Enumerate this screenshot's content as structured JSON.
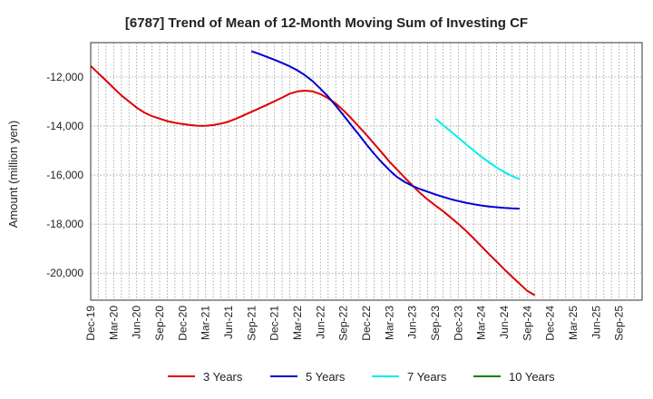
{
  "chart_data": {
    "type": "line",
    "title": "[6787]  Trend of Mean of 12-Month Moving Sum of Investing CF",
    "xlabel": "",
    "ylabel": "Amount (million yen)",
    "ylim": [
      -21100,
      -10600
    ],
    "yticks": [
      -20000,
      -18000,
      -16000,
      -14000,
      -12000
    ],
    "ytick_labels": [
      "-20,000",
      "-18,000",
      "-16,000",
      "-14,000",
      "-12,000"
    ],
    "x_tick_labels": [
      "Dec-19",
      "Mar-20",
      "Jun-20",
      "Sep-20",
      "Dec-20",
      "Mar-21",
      "Jun-21",
      "Sep-21",
      "Dec-21",
      "Mar-22",
      "Jun-22",
      "Sep-22",
      "Dec-22",
      "Mar-23",
      "Jun-23",
      "Sep-23",
      "Dec-23",
      "Mar-24",
      "Jun-24",
      "Sep-24",
      "Dec-24",
      "Mar-25"
    ],
    "x_tick_months": [
      0,
      3,
      6,
      9,
      12,
      15,
      18,
      21,
      24,
      27,
      30,
      33,
      36,
      39,
      42,
      45,
      48,
      51,
      54,
      57,
      60,
      63
    ],
    "x_range_months": [
      0,
      66
    ],
    "x_tick_labels_render": [
      "Dec-19",
      "Mar-20",
      "Jun-20",
      "Sep-20",
      "Dec-20",
      "Mar-21",
      "Jun-21",
      "Sep-21",
      "Dec-21",
      "Mar-22",
      "Jun-22",
      "Sep-22",
      "Dec-22",
      "Mar-23",
      "Jun-23",
      "Sep-23",
      "Dec-23",
      "Mar-24",
      "Jun-24",
      "Sep-24",
      "Dec-24",
      "Mar-25",
      "Jun-25",
      "Sep-25"
    ],
    "series": [
      {
        "name": "3 Years",
        "color": "#dd0000",
        "start_month": 0,
        "values": [
          -11550,
          -11850,
          -12150,
          -12450,
          -12750,
          -13000,
          -13250,
          -13450,
          -13600,
          -13700,
          -13800,
          -13870,
          -13920,
          -13960,
          -13990,
          -13990,
          -13960,
          -13900,
          -13820,
          -13700,
          -13560,
          -13420,
          -13280,
          -13140,
          -12990,
          -12840,
          -12680,
          -12590,
          -12560,
          -12590,
          -12700,
          -12870,
          -13080,
          -13360,
          -13680,
          -14020,
          -14360,
          -14720,
          -15080,
          -15450,
          -15780,
          -16100,
          -16420,
          -16730,
          -17000,
          -17240,
          -17470,
          -17730,
          -17990,
          -18270,
          -18580,
          -18900,
          -19220,
          -19530,
          -19840,
          -20140,
          -20430,
          -20720,
          -20900
        ]
      },
      {
        "name": "5 Years",
        "color": "#0000cc",
        "start_month": 21,
        "values": [
          -10950,
          -11060,
          -11180,
          -11300,
          -11430,
          -11570,
          -11730,
          -11930,
          -12180,
          -12480,
          -12800,
          -13170,
          -13560,
          -13960,
          -14350,
          -14750,
          -15130,
          -15480,
          -15800,
          -16080,
          -16280,
          -16440,
          -16570,
          -16680,
          -16790,
          -16890,
          -16980,
          -17060,
          -17130,
          -17190,
          -17240,
          -17280,
          -17310,
          -17340,
          -17360,
          -17370
        ]
      },
      {
        "name": "7 Years",
        "color": "#00eeee",
        "start_month": 45,
        "values": [
          -13700,
          -13960,
          -14220,
          -14480,
          -14740,
          -15000,
          -15250,
          -15480,
          -15690,
          -15880,
          -16040,
          -16160
        ]
      },
      {
        "name": "10 Years",
        "color": "#008000",
        "start_month": 0,
        "values": []
      }
    ],
    "grid": true,
    "legend_position": "bottom"
  }
}
